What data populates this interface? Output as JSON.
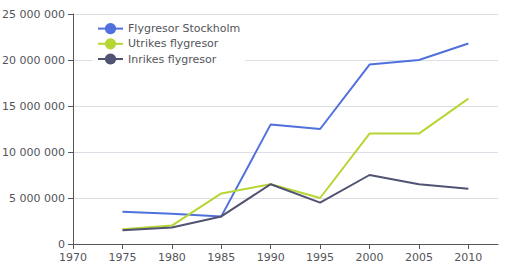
{
  "chart_data": {
    "type": "line",
    "x": [
      1975,
      1980,
      1985,
      1990,
      1995,
      2000,
      2005,
      2010
    ],
    "series": [
      {
        "name": "Flygresor Stockholm",
        "values": [
          3500000,
          3300000,
          3000000,
          13000000,
          12500000,
          19500000,
          20000000,
          21800000
        ]
      },
      {
        "name": "Utrikes flygresor",
        "values": [
          1600000,
          2000000,
          5500000,
          6500000,
          5000000,
          12000000,
          12000000,
          15800000
        ]
      },
      {
        "name": "Inrikes flygresor",
        "values": [
          1500000,
          1800000,
          3000000,
          6500000,
          4500000,
          7500000,
          6500000,
          6000000
        ]
      }
    ],
    "xlim": [
      1970,
      2013
    ],
    "ylim": [
      0,
      25000000
    ],
    "xticks": [
      1970,
      1975,
      1980,
      1985,
      1990,
      1995,
      2000,
      2005,
      2010
    ],
    "yticks": [
      0,
      {
        "value": 5000000,
        "label": "5 000 000"
      },
      {
        "value": 10000000,
        "label": "10 000 000"
      },
      {
        "value": 15000000,
        "label": "15 000 000"
      },
      {
        "value": 20000000,
        "label": "20 000 000"
      },
      {
        "value": 25000000,
        "label": "25 000 000"
      }
    ],
    "grid": true,
    "legend": "upper left"
  }
}
